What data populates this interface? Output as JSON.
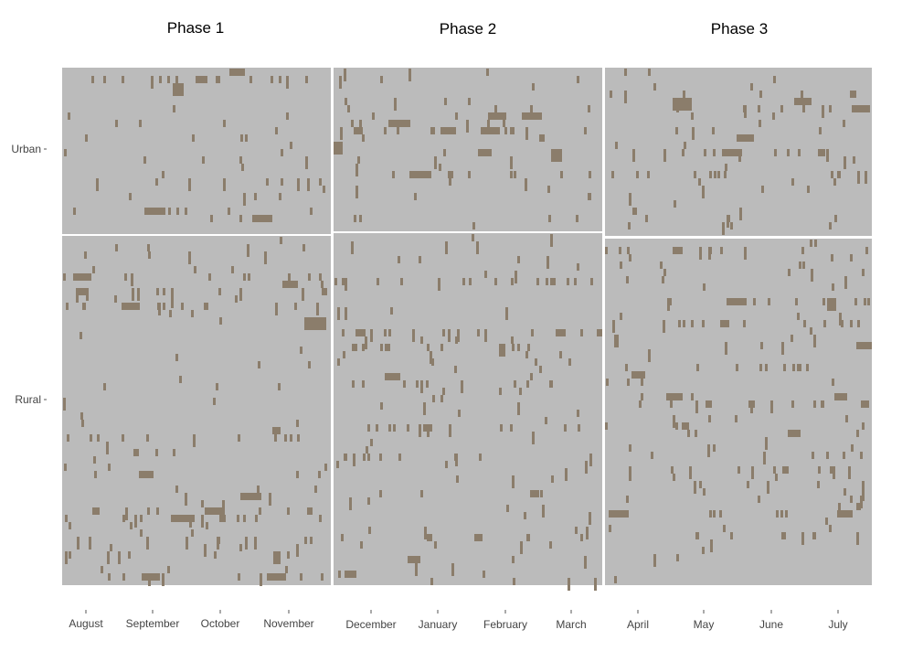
{
  "colors": {
    "panel_background": "#bbbbbb",
    "event": "#8b7d6b",
    "panel_gap": "#ffffff",
    "tick": "#555555"
  },
  "chart_data": {
    "type": "heatmap",
    "title": "",
    "facets": {
      "columns": [
        "Phase 1",
        "Phase 2",
        "Phase 3"
      ],
      "rows": [
        "Urban",
        "Rural"
      ]
    },
    "x_axis": {
      "Phase 1": [
        "August",
        "September",
        "October",
        "November"
      ],
      "Phase 2": [
        "December",
        "January",
        "February",
        "March"
      ],
      "Phase 3": [
        "April",
        "May",
        "June",
        "July"
      ]
    },
    "values": "binary presence/absence events per household (rows) per day (columns); filled cells shown in event colour",
    "grid": false
  }
}
